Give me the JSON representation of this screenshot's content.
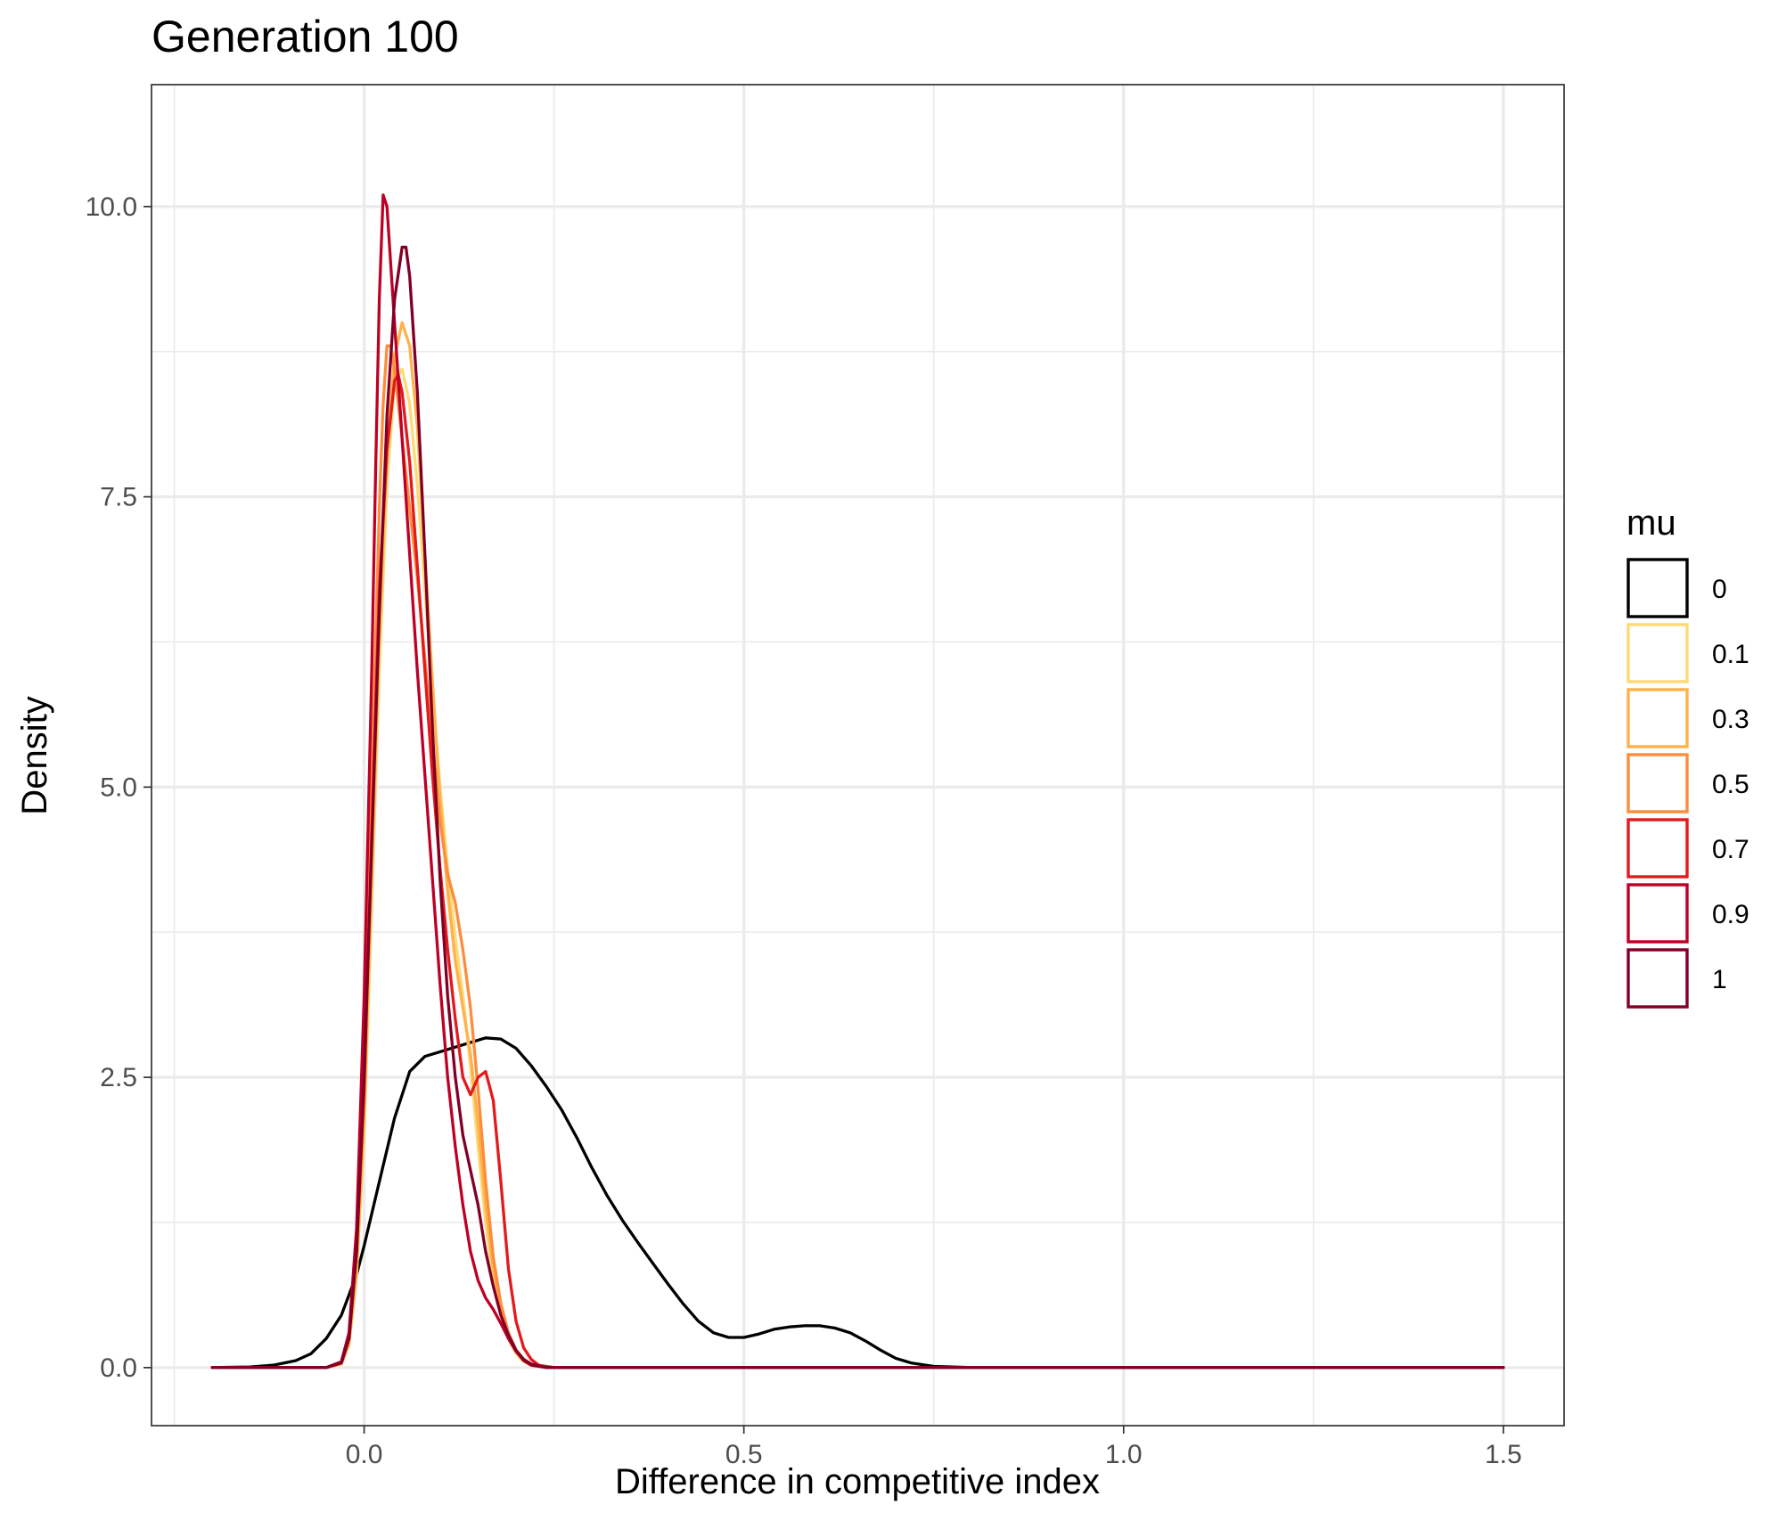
{
  "chart_data": {
    "type": "line",
    "title": "Generation 100",
    "xlabel": "Difference in competitive index",
    "ylabel": "Density",
    "xlim": [
      -0.28,
      1.58
    ],
    "ylim": [
      -0.5,
      11.05
    ],
    "x_ticks": [
      0.0,
      0.5,
      1.0,
      1.5
    ],
    "x_tick_labels": [
      "0.0",
      "0.5",
      "1.0",
      "1.5"
    ],
    "x_minor_ticks": [
      -0.25,
      0.25,
      0.75,
      1.25
    ],
    "y_ticks": [
      0.0,
      2.5,
      5.0,
      7.5,
      10.0
    ],
    "y_tick_labels": [
      "0.0",
      "2.5",
      "5.0",
      "7.5",
      "10.0"
    ],
    "y_minor_ticks": [
      1.25,
      3.75,
      6.25,
      8.75
    ],
    "grid": true,
    "legend": {
      "title": "mu",
      "position": "right",
      "entries": [
        "0",
        "0.1",
        "0.3",
        "0.5",
        "0.7",
        "0.9",
        "1"
      ]
    },
    "series": [
      {
        "name": "0",
        "color": "#000000",
        "points": [
          [
            -0.2,
            0
          ],
          [
            -0.15,
            0.005
          ],
          [
            -0.12,
            0.02
          ],
          [
            -0.09,
            0.06
          ],
          [
            -0.07,
            0.12
          ],
          [
            -0.05,
            0.25
          ],
          [
            -0.03,
            0.45
          ],
          [
            -0.01,
            0.8
          ],
          [
            0.0,
            1.05
          ],
          [
            0.02,
            1.6
          ],
          [
            0.04,
            2.15
          ],
          [
            0.06,
            2.55
          ],
          [
            0.08,
            2.68
          ],
          [
            0.1,
            2.72
          ],
          [
            0.12,
            2.76
          ],
          [
            0.14,
            2.8
          ],
          [
            0.16,
            2.84
          ],
          [
            0.18,
            2.83
          ],
          [
            0.2,
            2.75
          ],
          [
            0.22,
            2.6
          ],
          [
            0.24,
            2.42
          ],
          [
            0.26,
            2.22
          ],
          [
            0.28,
            1.98
          ],
          [
            0.3,
            1.72
          ],
          [
            0.32,
            1.48
          ],
          [
            0.34,
            1.27
          ],
          [
            0.36,
            1.08
          ],
          [
            0.38,
            0.9
          ],
          [
            0.4,
            0.72
          ],
          [
            0.42,
            0.55
          ],
          [
            0.44,
            0.4
          ],
          [
            0.46,
            0.3
          ],
          [
            0.48,
            0.26
          ],
          [
            0.5,
            0.26
          ],
          [
            0.52,
            0.29
          ],
          [
            0.54,
            0.33
          ],
          [
            0.56,
            0.35
          ],
          [
            0.58,
            0.36
          ],
          [
            0.6,
            0.36
          ],
          [
            0.62,
            0.34
          ],
          [
            0.64,
            0.3
          ],
          [
            0.66,
            0.23
          ],
          [
            0.68,
            0.15
          ],
          [
            0.7,
            0.08
          ],
          [
            0.72,
            0.04
          ],
          [
            0.75,
            0.01
          ],
          [
            0.8,
            0.0
          ],
          [
            1.5,
            0.0
          ]
        ]
      },
      {
        "name": "0.1",
        "color": "#FED976",
        "points": [
          [
            -0.2,
            0
          ],
          [
            -0.05,
            0.0
          ],
          [
            -0.03,
            0.03
          ],
          [
            -0.02,
            0.2
          ],
          [
            -0.01,
            0.8
          ],
          [
            0.0,
            2.0
          ],
          [
            0.01,
            4.0
          ],
          [
            0.02,
            6.0
          ],
          [
            0.03,
            7.6
          ],
          [
            0.04,
            8.5
          ],
          [
            0.05,
            8.6
          ],
          [
            0.06,
            8.3
          ],
          [
            0.07,
            7.6
          ],
          [
            0.08,
            6.7
          ],
          [
            0.09,
            5.8
          ],
          [
            0.1,
            5.0
          ],
          [
            0.11,
            4.3
          ],
          [
            0.12,
            3.7
          ],
          [
            0.13,
            3.2
          ],
          [
            0.14,
            2.6
          ],
          [
            0.15,
            1.9
          ],
          [
            0.16,
            1.25
          ],
          [
            0.17,
            0.75
          ],
          [
            0.18,
            0.45
          ],
          [
            0.19,
            0.25
          ],
          [
            0.2,
            0.12
          ],
          [
            0.21,
            0.05
          ],
          [
            0.22,
            0.02
          ],
          [
            0.24,
            0.0
          ],
          [
            1.5,
            0.0
          ]
        ]
      },
      {
        "name": "0.3",
        "color": "#FEB24C",
        "points": [
          [
            -0.2,
            0
          ],
          [
            -0.05,
            0.0
          ],
          [
            -0.03,
            0.03
          ],
          [
            -0.02,
            0.2
          ],
          [
            -0.01,
            0.8
          ],
          [
            0.0,
            2.2
          ],
          [
            0.01,
            4.2
          ],
          [
            0.02,
            6.3
          ],
          [
            0.03,
            7.9
          ],
          [
            0.04,
            8.7
          ],
          [
            0.05,
            9.0
          ],
          [
            0.06,
            8.8
          ],
          [
            0.07,
            8.1
          ],
          [
            0.08,
            7.0
          ],
          [
            0.09,
            5.9
          ],
          [
            0.1,
            4.9
          ],
          [
            0.11,
            4.1
          ],
          [
            0.12,
            3.5
          ],
          [
            0.13,
            3.1
          ],
          [
            0.14,
            2.7
          ],
          [
            0.15,
            2.1
          ],
          [
            0.16,
            1.4
          ],
          [
            0.17,
            0.85
          ],
          [
            0.18,
            0.5
          ],
          [
            0.19,
            0.3
          ],
          [
            0.2,
            0.15
          ],
          [
            0.21,
            0.07
          ],
          [
            0.22,
            0.03
          ],
          [
            0.24,
            0.0
          ],
          [
            1.5,
            0.0
          ]
        ]
      },
      {
        "name": "0.5",
        "color": "#FD8D3C",
        "points": [
          [
            -0.2,
            0
          ],
          [
            -0.05,
            0.0
          ],
          [
            -0.03,
            0.04
          ],
          [
            -0.02,
            0.25
          ],
          [
            -0.01,
            1.0
          ],
          [
            0.0,
            2.5
          ],
          [
            0.01,
            5.0
          ],
          [
            0.02,
            7.4
          ],
          [
            0.025,
            8.3
          ],
          [
            0.03,
            8.8
          ],
          [
            0.035,
            8.8
          ],
          [
            0.04,
            8.6
          ],
          [
            0.05,
            8.0
          ],
          [
            0.06,
            7.4
          ],
          [
            0.07,
            6.8
          ],
          [
            0.08,
            6.1
          ],
          [
            0.09,
            5.4
          ],
          [
            0.1,
            4.7
          ],
          [
            0.11,
            4.25
          ],
          [
            0.12,
            4.0
          ],
          [
            0.13,
            3.6
          ],
          [
            0.14,
            3.1
          ],
          [
            0.15,
            2.4
          ],
          [
            0.16,
            1.6
          ],
          [
            0.17,
            0.95
          ],
          [
            0.18,
            0.55
          ],
          [
            0.19,
            0.3
          ],
          [
            0.2,
            0.15
          ],
          [
            0.21,
            0.07
          ],
          [
            0.22,
            0.03
          ],
          [
            0.24,
            0.0
          ],
          [
            1.5,
            0.0
          ]
        ]
      },
      {
        "name": "0.7",
        "color": "#E31A1C",
        "points": [
          [
            -0.2,
            0
          ],
          [
            -0.05,
            0.0
          ],
          [
            -0.03,
            0.04
          ],
          [
            -0.02,
            0.25
          ],
          [
            -0.01,
            1.0
          ],
          [
            0.0,
            2.4
          ],
          [
            0.01,
            4.6
          ],
          [
            0.02,
            6.7
          ],
          [
            0.03,
            7.9
          ],
          [
            0.04,
            8.5
          ],
          [
            0.045,
            8.55
          ],
          [
            0.05,
            8.4
          ],
          [
            0.06,
            7.8
          ],
          [
            0.07,
            6.9
          ],
          [
            0.08,
            6.0
          ],
          [
            0.09,
            5.1
          ],
          [
            0.1,
            4.3
          ],
          [
            0.11,
            3.6
          ],
          [
            0.12,
            3.0
          ],
          [
            0.13,
            2.5
          ],
          [
            0.14,
            2.35
          ],
          [
            0.15,
            2.5
          ],
          [
            0.16,
            2.55
          ],
          [
            0.17,
            2.3
          ],
          [
            0.18,
            1.6
          ],
          [
            0.19,
            0.85
          ],
          [
            0.2,
            0.4
          ],
          [
            0.21,
            0.17
          ],
          [
            0.22,
            0.07
          ],
          [
            0.23,
            0.02
          ],
          [
            0.25,
            0.0
          ],
          [
            1.5,
            0.0
          ]
        ]
      },
      {
        "name": "0.9",
        "color": "#BD0026",
        "points": [
          [
            -0.2,
            0
          ],
          [
            -0.05,
            0.0
          ],
          [
            -0.03,
            0.05
          ],
          [
            -0.02,
            0.3
          ],
          [
            -0.01,
            1.2
          ],
          [
            0.0,
            3.2
          ],
          [
            0.01,
            6.0
          ],
          [
            0.015,
            7.7
          ],
          [
            0.02,
            9.2
          ],
          [
            0.025,
            10.1
          ],
          [
            0.03,
            10.0
          ],
          [
            0.04,
            9.0
          ],
          [
            0.05,
            8.0
          ],
          [
            0.06,
            7.0
          ],
          [
            0.07,
            6.0
          ],
          [
            0.08,
            5.1
          ],
          [
            0.09,
            4.2
          ],
          [
            0.1,
            3.3
          ],
          [
            0.11,
            2.5
          ],
          [
            0.12,
            1.9
          ],
          [
            0.13,
            1.4
          ],
          [
            0.14,
            1.0
          ],
          [
            0.15,
            0.75
          ],
          [
            0.16,
            0.6
          ],
          [
            0.17,
            0.5
          ],
          [
            0.18,
            0.38
          ],
          [
            0.19,
            0.25
          ],
          [
            0.2,
            0.14
          ],
          [
            0.21,
            0.06
          ],
          [
            0.22,
            0.02
          ],
          [
            0.24,
            0.0
          ],
          [
            1.5,
            0.0
          ]
        ]
      },
      {
        "name": "1",
        "color": "#800026",
        "points": [
          [
            -0.2,
            0
          ],
          [
            -0.05,
            0.0
          ],
          [
            -0.03,
            0.04
          ],
          [
            -0.02,
            0.25
          ],
          [
            -0.01,
            1.0
          ],
          [
            0.0,
            2.5
          ],
          [
            0.01,
            4.5
          ],
          [
            0.02,
            6.5
          ],
          [
            0.03,
            8.2
          ],
          [
            0.04,
            9.2
          ],
          [
            0.05,
            9.65
          ],
          [
            0.055,
            9.65
          ],
          [
            0.06,
            9.4
          ],
          [
            0.07,
            8.4
          ],
          [
            0.08,
            7.0
          ],
          [
            0.09,
            5.5
          ],
          [
            0.1,
            4.2
          ],
          [
            0.11,
            3.2
          ],
          [
            0.12,
            2.5
          ],
          [
            0.13,
            2.0
          ],
          [
            0.14,
            1.7
          ],
          [
            0.15,
            1.4
          ],
          [
            0.16,
            1.0
          ],
          [
            0.17,
            0.7
          ],
          [
            0.18,
            0.45
          ],
          [
            0.19,
            0.28
          ],
          [
            0.2,
            0.15
          ],
          [
            0.21,
            0.07
          ],
          [
            0.22,
            0.03
          ],
          [
            0.24,
            0.0
          ],
          [
            1.5,
            0.0
          ]
        ]
      }
    ]
  }
}
